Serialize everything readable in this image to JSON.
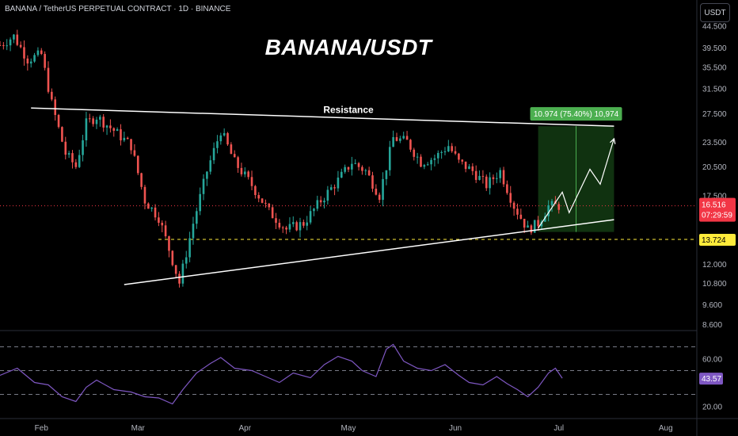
{
  "header": {
    "symbol_line": "BANANA / TetherUS PERPETUAL CONTRACT · 1D · BINANCE",
    "currency_button": "USDT"
  },
  "colors": {
    "up": "#26a69a",
    "down": "#ef5350",
    "rsi_line": "#7e57c2",
    "target_box": "#1e5b1e",
    "target_label": "#4caf50",
    "price_label": "#f23645",
    "support_label": "#ffeb3b"
  },
  "chart_data": [
    {
      "type": "candlestick",
      "title": "BANANA/USDT",
      "yscale": "log",
      "y_ticks": [
        44.5,
        39.5,
        35.5,
        31.5,
        27.5,
        23.5,
        20.5,
        17.5,
        16.516,
        13.724,
        12.0,
        10.8,
        9.6,
        8.6
      ],
      "y_tick_labels": [
        "44.500",
        "39.500",
        "35.500",
        "31.500",
        "27.500",
        "23.500",
        "20.500",
        "17.500",
        "16.516",
        "13.724",
        "12.000",
        "10.800",
        "9.600",
        "8.600"
      ],
      "x_tick_labels": [
        "Feb",
        "Mar",
        "Apr",
        "May",
        "Jun",
        "Jul",
        "Aug"
      ],
      "x_range": [
        "2025-01-20",
        "2025-08-10"
      ],
      "close_path": [
        [
          "2025-01-20",
          40
        ],
        [
          "2025-01-24",
          42
        ],
        [
          "2025-01-28",
          37
        ],
        [
          "2025-02-01",
          38
        ],
        [
          "2025-02-04",
          29
        ],
        [
          "2025-02-08",
          22
        ],
        [
          "2025-02-11",
          20.5
        ],
        [
          "2025-02-14",
          26
        ],
        [
          "2025-02-17",
          27
        ],
        [
          "2025-02-22",
          25
        ],
        [
          "2025-02-27",
          23
        ],
        [
          "2025-03-03",
          17
        ],
        [
          "2025-03-07",
          15.5
        ],
        [
          "2025-03-10",
          13
        ],
        [
          "2025-03-13",
          10.8
        ],
        [
          "2025-03-17",
          15
        ],
        [
          "2025-03-21",
          20
        ],
        [
          "2025-03-25",
          25
        ],
        [
          "2025-03-29",
          21
        ],
        [
          "2025-04-03",
          18.5
        ],
        [
          "2025-04-08",
          16
        ],
        [
          "2025-04-13",
          14.5
        ],
        [
          "2025-04-18",
          15
        ],
        [
          "2025-04-23",
          17
        ],
        [
          "2025-04-28",
          19
        ],
        [
          "2025-05-02",
          21
        ],
        [
          "2025-05-06",
          20
        ],
        [
          "2025-05-10",
          17.5
        ],
        [
          "2025-05-14",
          24
        ],
        [
          "2025-05-18",
          23.5
        ],
        [
          "2025-05-22",
          21
        ],
        [
          "2025-05-26",
          21.5
        ],
        [
          "2025-05-30",
          23
        ],
        [
          "2025-06-02",
          21
        ],
        [
          "2025-06-06",
          20
        ],
        [
          "2025-06-10",
          18.5
        ],
        [
          "2025-06-14",
          20
        ],
        [
          "2025-06-18",
          16.5
        ],
        [
          "2025-06-22",
          14.5
        ],
        [
          "2025-06-25",
          15
        ],
        [
          "2025-06-28",
          16.5
        ],
        [
          "2025-07-01",
          16.516
        ]
      ],
      "last_price": 16.516,
      "price_label": "16.516",
      "countdown": "07:29:59",
      "support_level": 13.724,
      "support_label": "13.724",
      "resistance_line": {
        "label": "Resistance",
        "from": [
          "2025-01-29",
          28.3
        ],
        "to": [
          "2025-07-17",
          25.6
        ]
      },
      "support_trendline": {
        "from": [
          "2025-02-25",
          10.7
        ],
        "to": [
          "2025-07-17",
          15.3
        ]
      },
      "target_box": {
        "from": [
          "2025-06-25",
          14.3
        ],
        "to": [
          "2025-07-17",
          25.6
        ],
        "label": "10.974 (75.40%) 10,974"
      },
      "projection_path": [
        [
          "2025-06-25",
          14.6
        ],
        [
          "2025-07-02",
          17.8
        ],
        [
          "2025-07-04",
          15.9
        ],
        [
          "2025-07-10",
          20.2
        ],
        [
          "2025-07-13",
          18.6
        ],
        [
          "2025-07-17",
          23.9
        ]
      ]
    },
    {
      "type": "line",
      "name": "RSI",
      "ylim": [
        15,
        75
      ],
      "y_ticks": [
        60,
        20
      ],
      "y_tick_labels": [
        "60.00",
        "20.00"
      ],
      "levels": [
        70,
        50,
        30
      ],
      "last_value": 43.57,
      "last_label": "43.57",
      "values": [
        [
          "2025-01-20",
          46
        ],
        [
          "2025-01-25",
          52
        ],
        [
          "2025-01-30",
          40
        ],
        [
          "2025-02-03",
          38
        ],
        [
          "2025-02-07",
          28
        ],
        [
          "2025-02-11",
          24
        ],
        [
          "2025-02-14",
          36
        ],
        [
          "2025-02-17",
          42
        ],
        [
          "2025-02-22",
          34
        ],
        [
          "2025-02-27",
          32
        ],
        [
          "2025-03-03",
          28
        ],
        [
          "2025-03-07",
          27
        ],
        [
          "2025-03-11",
          22
        ],
        [
          "2025-03-14",
          34
        ],
        [
          "2025-03-18",
          48
        ],
        [
          "2025-03-22",
          56
        ],
        [
          "2025-03-25",
          61
        ],
        [
          "2025-03-29",
          52
        ],
        [
          "2025-04-03",
          50
        ],
        [
          "2025-04-07",
          45
        ],
        [
          "2025-04-11",
          40
        ],
        [
          "2025-04-15",
          48
        ],
        [
          "2025-04-20",
          44
        ],
        [
          "2025-04-24",
          55
        ],
        [
          "2025-04-28",
          62
        ],
        [
          "2025-05-02",
          58
        ],
        [
          "2025-05-05",
          50
        ],
        [
          "2025-05-09",
          45
        ],
        [
          "2025-05-12",
          68
        ],
        [
          "2025-05-14",
          72
        ],
        [
          "2025-05-17",
          58
        ],
        [
          "2025-05-21",
          52
        ],
        [
          "2025-05-25",
          50
        ],
        [
          "2025-05-29",
          55
        ],
        [
          "2025-06-02",
          46
        ],
        [
          "2025-06-05",
          40
        ],
        [
          "2025-06-09",
          38
        ],
        [
          "2025-06-13",
          45
        ],
        [
          "2025-06-16",
          39
        ],
        [
          "2025-06-19",
          34
        ],
        [
          "2025-06-22",
          28
        ],
        [
          "2025-06-25",
          36
        ],
        [
          "2025-06-28",
          48
        ],
        [
          "2025-06-30",
          52
        ],
        [
          "2025-07-02",
          43.57
        ]
      ]
    }
  ]
}
